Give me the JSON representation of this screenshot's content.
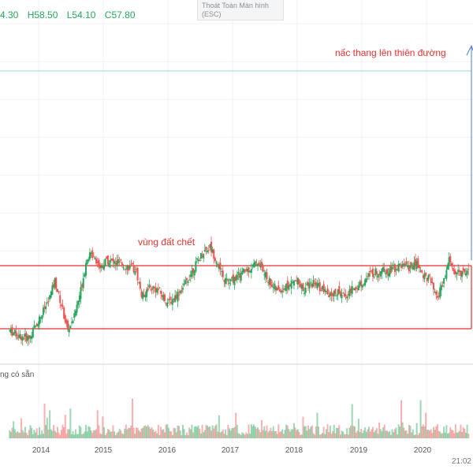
{
  "ohlc": {
    "open": "4.30",
    "high": "H58.50",
    "low": "L54.10",
    "close": "C57.80"
  },
  "tooltip": {
    "line1": "Thoát Toàn Màn hình",
    "line2": "(ESC)"
  },
  "annotations": {
    "top": "nấc thang lên thiên đường",
    "zone": "vùng đất chết"
  },
  "volume_label": "ng có sẵn",
  "clock": "21:02",
  "colors": {
    "up": "#26a65b",
    "down": "#ef5350",
    "zone_line": "#e0312f",
    "target_line": "#9fd6d2",
    "arrow": "#4a7bd0"
  },
  "chart_data": {
    "type": "candlestick",
    "x_tick_labels": [
      "2014",
      "2015",
      "2016",
      "2017",
      "2018",
      "2019",
      "2020"
    ],
    "price_path": [
      [
        2013.55,
        49.5
      ],
      [
        2013.7,
        48.8
      ],
      [
        2013.85,
        48.5
      ],
      [
        2013.95,
        50.2
      ],
      [
        2014.05,
        51.8
      ],
      [
        2014.15,
        53.5
      ],
      [
        2014.25,
        56.2
      ],
      [
        2014.35,
        53.0
      ],
      [
        2014.45,
        49.5
      ],
      [
        2014.55,
        51.5
      ],
      [
        2014.65,
        55.0
      ],
      [
        2014.75,
        59.5
      ],
      [
        2014.85,
        59.8
      ],
      [
        2014.95,
        58.0
      ],
      [
        2015.05,
        59.0
      ],
      [
        2015.2,
        58.6
      ],
      [
        2015.35,
        58.2
      ],
      [
        2015.5,
        57.8
      ],
      [
        2015.6,
        54.0
      ],
      [
        2015.7,
        55.5
      ],
      [
        2015.85,
        55.0
      ],
      [
        2016.0,
        53.2
      ],
      [
        2016.1,
        54.0
      ],
      [
        2016.25,
        55.5
      ],
      [
        2016.4,
        58.0
      ],
      [
        2016.55,
        60.2
      ],
      [
        2016.65,
        60.8
      ],
      [
        2016.75,
        59.0
      ],
      [
        2016.85,
        56.5
      ],
      [
        2016.95,
        56.0
      ],
      [
        2017.1,
        57.0
      ],
      [
        2017.25,
        57.8
      ],
      [
        2017.4,
        58.8
      ],
      [
        2017.5,
        57.0
      ],
      [
        2017.6,
        55.8
      ],
      [
        2017.7,
        54.8
      ],
      [
        2017.85,
        55.5
      ],
      [
        2018.0,
        56.2
      ],
      [
        2018.1,
        55.0
      ],
      [
        2018.25,
        56.0
      ],
      [
        2018.4,
        55.0
      ],
      [
        2018.5,
        54.0
      ],
      [
        2018.6,
        54.8
      ],
      [
        2018.7,
        54.2
      ],
      [
        2018.85,
        55.0
      ],
      [
        2019.0,
        56.0
      ],
      [
        2019.15,
        57.2
      ],
      [
        2019.3,
        57.6
      ],
      [
        2019.45,
        57.8
      ],
      [
        2019.6,
        58.2
      ],
      [
        2019.75,
        58.0
      ],
      [
        2019.85,
        58.5
      ],
      [
        2019.95,
        57.0
      ],
      [
        2020.05,
        56.5
      ],
      [
        2020.15,
        53.8
      ],
      [
        2020.25,
        55.5
      ],
      [
        2020.35,
        59.0
      ],
      [
        2020.45,
        57.0
      ],
      [
        2020.55,
        57.5
      ],
      [
        2020.65,
        57.8
      ]
    ],
    "zone_top": 61.0,
    "zone_bottom": 47.5,
    "target_level": 89.0,
    "ylim": [
      45,
      94
    ],
    "xlim": [
      2013.4,
      2020.72
    ]
  }
}
